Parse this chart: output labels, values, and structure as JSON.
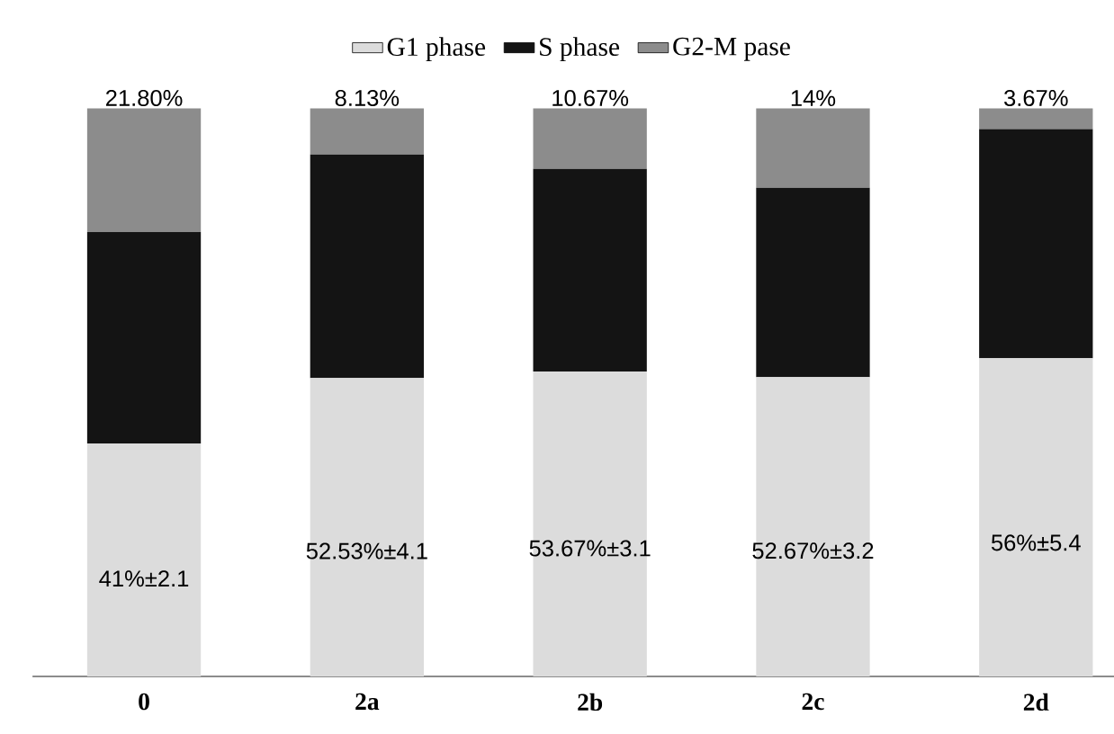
{
  "chart_data": {
    "type": "bar",
    "stacked": true,
    "legend": "top",
    "categories": [
      "0",
      "2a",
      "2b",
      "2c",
      "2d"
    ],
    "series": [
      {
        "name": "G1 phase",
        "color": "#dcdcdc",
        "values": [
          41,
          52.53,
          53.67,
          52.67,
          56
        ],
        "value_labels": [
          "41%±2.1",
          "52.53%±4.1",
          "53.67%±3.1",
          "52.67%±3.2",
          "56%±5.4"
        ]
      },
      {
        "name": "S phase",
        "color": "#141414",
        "values": [
          37.2,
          39.34,
          35.66,
          33.33,
          40.33
        ]
      },
      {
        "name": "G2-M pase",
        "color": "#8c8c8c",
        "values": [
          21.8,
          8.13,
          10.67,
          14,
          3.67
        ],
        "value_labels": [
          "21.80%",
          "8.13%",
          "10.67%",
          "14%",
          "3.67%"
        ]
      }
    ]
  }
}
